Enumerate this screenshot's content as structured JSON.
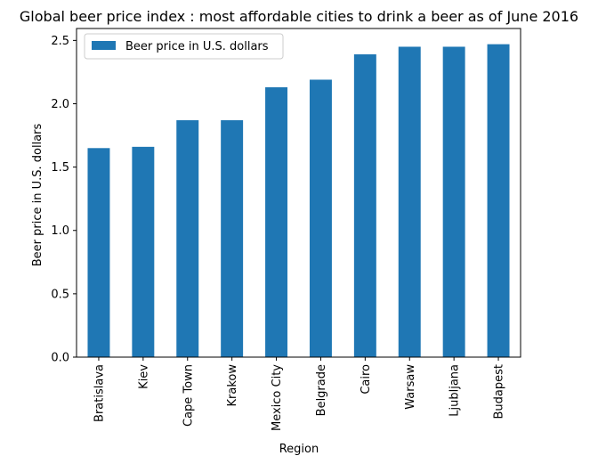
{
  "chart_data": {
    "type": "bar",
    "title": "Global beer price index : most affordable cities to drink a beer as of June 2016",
    "xlabel": "Region",
    "ylabel": "Beer price in U.S. dollars",
    "categories": [
      "Bratislava",
      "Kiev",
      "Cape Town",
      "Krakow",
      "Mexico City",
      "Belgrade",
      "Cairo",
      "Warsaw",
      "Ljubljana",
      "Budapest"
    ],
    "series": [
      {
        "name": "Beer price in U.S. dollars",
        "values": [
          1.65,
          1.66,
          1.87,
          1.87,
          2.13,
          2.19,
          2.39,
          2.45,
          2.45,
          2.47
        ],
        "color": "#1f77b4"
      }
    ],
    "ylim": [
      0,
      2.594
    ],
    "yticks": [
      0.0,
      0.5,
      1.0,
      1.5,
      2.0,
      2.5
    ],
    "ytick_labels": [
      "0.0",
      "0.5",
      "1.0",
      "1.5",
      "2.0",
      "2.5"
    ],
    "grid": false,
    "legend_position": "top-left"
  }
}
